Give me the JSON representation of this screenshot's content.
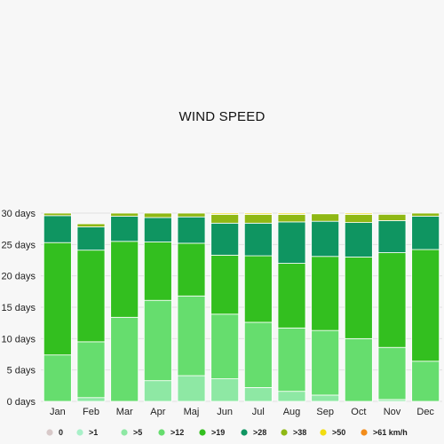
{
  "chart_data": {
    "type": "bar",
    "title": "WIND SPEED",
    "xlabel": "",
    "ylabel": "",
    "ylim": [
      0,
      30
    ],
    "y_ticks": [
      0,
      5,
      10,
      15,
      20,
      25,
      30
    ],
    "y_unit": "days",
    "stacked": true,
    "categories": [
      "Jan",
      "Feb",
      "Mar",
      "Apr",
      "Maj",
      "Jun",
      "Jul",
      "Aug",
      "Sep",
      "Oct",
      "Nov",
      "Dec"
    ],
    "series": [
      {
        "name": "0",
        "color": "#d8c9c9",
        "values": [
          0,
          0,
          0,
          0,
          0,
          0,
          0,
          0,
          0,
          0,
          0,
          0
        ]
      },
      {
        "name": ">1",
        "color": "#a8f0c8",
        "values": [
          0,
          0,
          0,
          0,
          0,
          0,
          0,
          0,
          0,
          0,
          0,
          0
        ]
      },
      {
        "name": ">5",
        "color": "#8ee8a4",
        "values": [
          0,
          0.6,
          0,
          3.3,
          4.1,
          3.6,
          2.2,
          1.6,
          1.0,
          0,
          0.3,
          0
        ]
      },
      {
        "name": ">12",
        "color": "#66dd6e",
        "values": [
          7.4,
          8.9,
          13.4,
          12.8,
          12.7,
          10.3,
          10.4,
          10.1,
          10.3,
          10.0,
          8.3,
          6.4
        ]
      },
      {
        "name": ">19",
        "color": "#33bf1f",
        "values": [
          17.9,
          14.6,
          12.1,
          9.3,
          8.4,
          9.4,
          10.6,
          10.3,
          11.8,
          13.0,
          15.1,
          17.8
        ]
      },
      {
        "name": ">28",
        "color": "#0f9561",
        "values": [
          4.3,
          3.7,
          4.0,
          3.9,
          4.2,
          5.1,
          5.2,
          6.6,
          5.6,
          5.5,
          5.1,
          5.3
        ]
      },
      {
        "name": ">38",
        "color": "#8fb814",
        "values": [
          0.4,
          0.5,
          0.5,
          0.7,
          0.6,
          1.4,
          1.4,
          1.2,
          1.2,
          1.3,
          1.0,
          0.5
        ]
      },
      {
        "name": ">50",
        "color": "#f2dd10",
        "values": [
          0,
          0,
          0,
          0,
          0,
          0.2,
          0.2,
          0.2,
          0.1,
          0.2,
          0,
          0
        ]
      },
      {
        "name": ">61 km/h",
        "color": "#f28c1a",
        "values": [
          0,
          0,
          0,
          0,
          0,
          0,
          0,
          0,
          0,
          0,
          0,
          0
        ]
      }
    ],
    "legend_position": "bottom",
    "grid": true
  }
}
